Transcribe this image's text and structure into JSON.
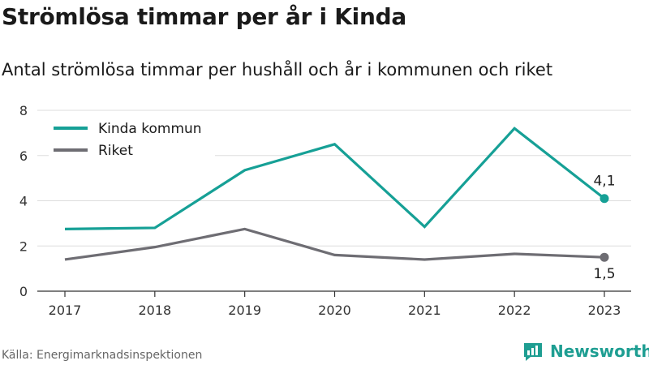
{
  "header": {
    "title": "Strömlösa timmar per år i Kinda",
    "subtitle": "Antal strömlösa timmar per hushåll och år i kommunen och riket"
  },
  "footer": {
    "source": "Källa: Energimarknadsinspektionen",
    "brand": "Newsworthy",
    "brand_icon": "newsworthy-logo-icon"
  },
  "colors": {
    "kinda": "#16a096",
    "riket": "#6e6d73",
    "grid": "#dddddd",
    "axis": "#333333",
    "brand": "#1e9e92"
  },
  "chart_data": {
    "type": "line",
    "title": "Strömlösa timmar per år i Kinda",
    "subtitle": "Antal strömlösa timmar per hushåll och år i kommunen och riket",
    "x": [
      "2017",
      "2018",
      "2019",
      "2020",
      "2021",
      "2022",
      "2023"
    ],
    "ylim": [
      0,
      8
    ],
    "yticks": [
      0,
      2,
      4,
      6,
      8
    ],
    "grid": true,
    "legend": "top-left",
    "series": [
      {
        "name": "Kinda kommun",
        "values": [
          2.75,
          2.8,
          5.35,
          6.5,
          2.85,
          7.2,
          4.1
        ],
        "end_label": "4,1"
      },
      {
        "name": "Riket",
        "values": [
          1.4,
          1.95,
          2.75,
          1.6,
          1.4,
          1.65,
          1.5
        ],
        "end_label": "1,5"
      }
    ]
  }
}
